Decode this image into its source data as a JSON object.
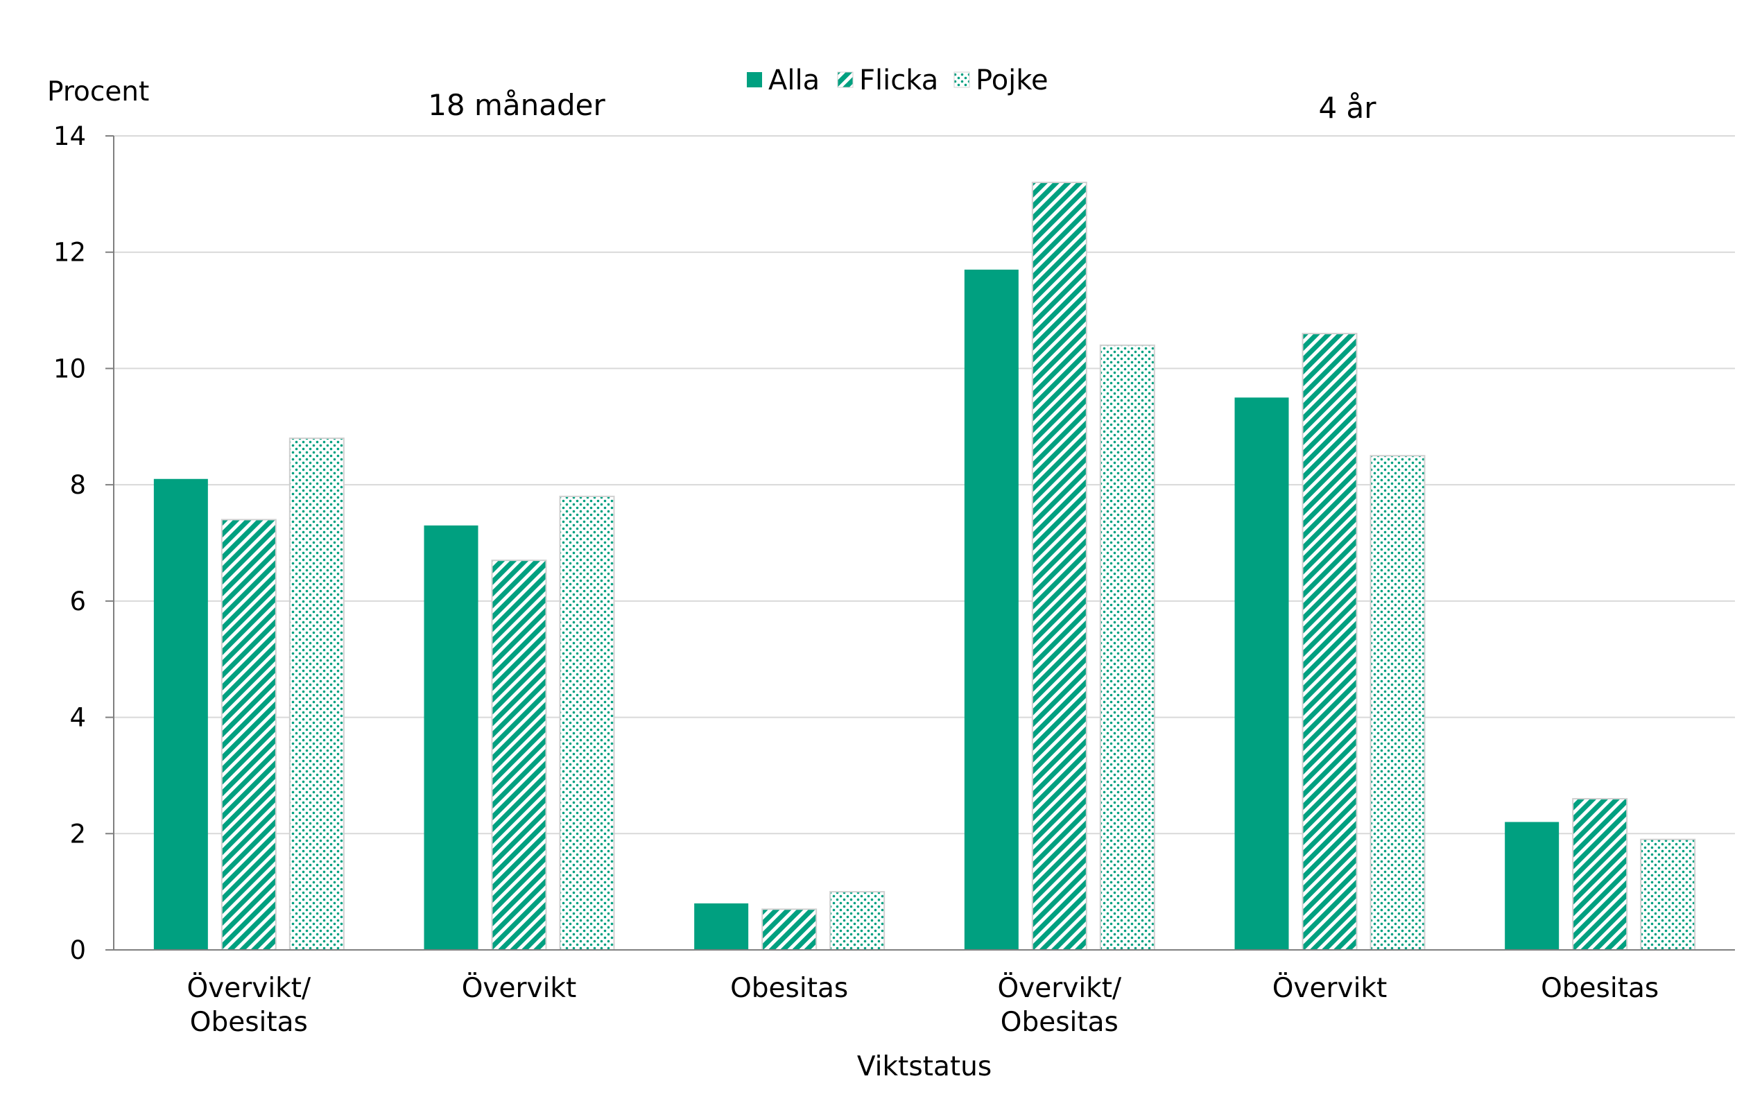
{
  "chart_data": {
    "type": "bar",
    "ylabel": "Procent",
    "xlabel": "Viktstatus",
    "ylim": [
      0,
      14
    ],
    "yticks": [
      0,
      2,
      4,
      6,
      8,
      10,
      12,
      14
    ],
    "grid": true,
    "legend_position": "top-center",
    "groups": [
      {
        "label": "18 månader"
      },
      {
        "label": "4 år"
      }
    ],
    "categories": [
      {
        "line1": "Övervikt/",
        "line2": "Obesitas"
      },
      {
        "line1": "Övervikt",
        "line2": ""
      },
      {
        "line1": "Obesitas",
        "line2": ""
      },
      {
        "line1": "Övervikt/",
        "line2": "Obesitas"
      },
      {
        "line1": "Övervikt",
        "line2": ""
      },
      {
        "line1": "Obesitas",
        "line2": ""
      }
    ],
    "series": [
      {
        "name": "Alla",
        "pattern": "solid",
        "color": "#00a080",
        "values": [
          8.1,
          7.3,
          0.8,
          11.7,
          9.5,
          2.2
        ]
      },
      {
        "name": "Flicka",
        "pattern": "diagonal",
        "color": "#00a080",
        "values": [
          7.4,
          6.7,
          0.7,
          13.2,
          10.6,
          2.6
        ]
      },
      {
        "name": "Pojke",
        "pattern": "dots",
        "color": "#00a080",
        "values": [
          8.8,
          7.8,
          1.0,
          10.4,
          8.5,
          1.9
        ]
      }
    ]
  }
}
